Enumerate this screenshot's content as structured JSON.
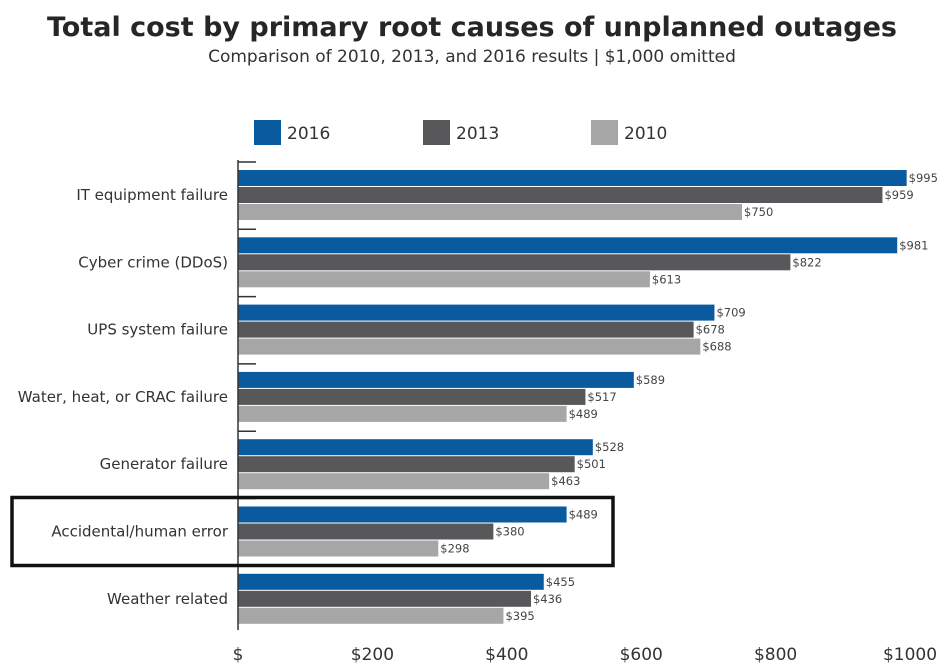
{
  "chart_data": {
    "type": "bar",
    "orientation": "horizontal",
    "title": "Total cost by primary root causes of unplanned outages",
    "subtitle": "Comparison of 2010, 2013, and 2016 results  |  $1,000 omitted",
    "categories": [
      "IT equipment failure",
      "Cyber crime (DDoS)",
      "UPS system failure",
      "Water, heat, or CRAC failure",
      "Generator failure",
      "Accidental/human error",
      "Weather related"
    ],
    "series": [
      {
        "name": "2016",
        "color": "#0a5aa0",
        "values": [
          995,
          981,
          709,
          589,
          528,
          489,
          455
        ],
        "labels": [
          "$995",
          "$981",
          "$709",
          "$589",
          "$528",
          "$489",
          "$455"
        ]
      },
      {
        "name": "2013",
        "color": "#58585a",
        "values": [
          959,
          822,
          678,
          517,
          501,
          380,
          436
        ],
        "labels": [
          "$959",
          "$822",
          "$678",
          "$517",
          "$501",
          "$380",
          "$436"
        ]
      },
      {
        "name": "2010",
        "color": "#a6a6a6",
        "values": [
          750,
          613,
          688,
          489,
          463,
          298,
          395
        ],
        "labels": [
          "$750",
          "$613",
          "$688",
          "$489",
          "$463",
          "$298",
          "$395"
        ]
      }
    ],
    "xlim": [
      0,
      1000
    ],
    "xticks": [
      0,
      200,
      400,
      600,
      800,
      1000
    ],
    "xtick_labels": [
      "$",
      "$200",
      "$400",
      "$600",
      "$800",
      "$1000"
    ],
    "legend_position": "top",
    "highlighted_category": "Accidental/human error",
    "grid": false
  }
}
